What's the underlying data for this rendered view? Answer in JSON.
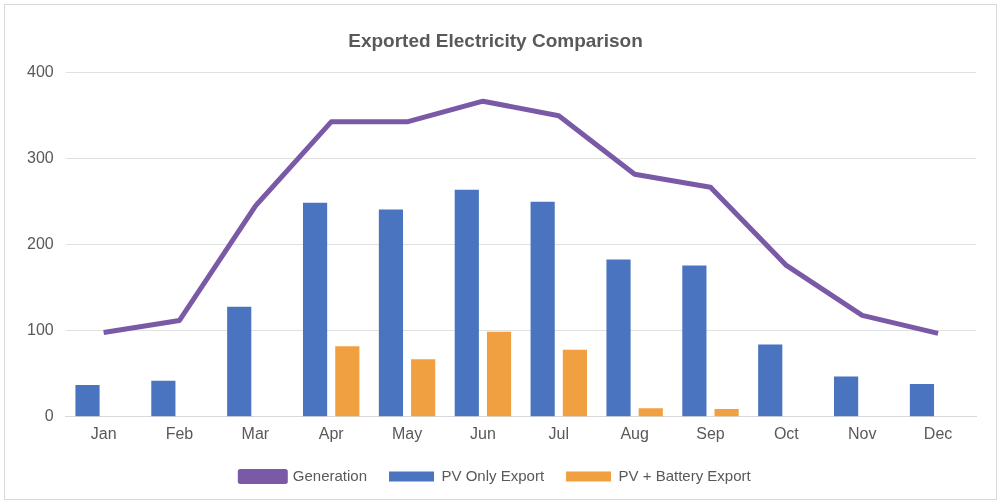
{
  "chart_data": {
    "type": "bar",
    "title": "Exported Electricity Comparison",
    "categories": [
      "Jan",
      "Feb",
      "Mar",
      "Apr",
      "May",
      "Jun",
      "Jul",
      "Aug",
      "Sep",
      "Oct",
      "Nov",
      "Dec"
    ],
    "series": [
      {
        "name": "PV Only Export",
        "color": "#4a74c0",
        "values": [
          37,
          42,
          128,
          249,
          241,
          264,
          250,
          183,
          176,
          84,
          47,
          38
        ]
      },
      {
        "name": "PV + Battery Export",
        "color": "#f0a040",
        "values": [
          0,
          0,
          0,
          82,
          67,
          99,
          78,
          10,
          9,
          0,
          0,
          0
        ]
      },
      {
        "name": "Generation",
        "type": "line",
        "color": "#7a5aa6",
        "values": [
          98,
          112,
          245,
          343,
          343,
          367,
          350,
          282,
          267,
          176,
          118,
          97
        ]
      }
    ],
    "ylim": [
      0,
      400
    ],
    "yticks": [
      0,
      100,
      200,
      300,
      400
    ],
    "grid": "y",
    "legend": "bottom",
    "marker": "none"
  }
}
